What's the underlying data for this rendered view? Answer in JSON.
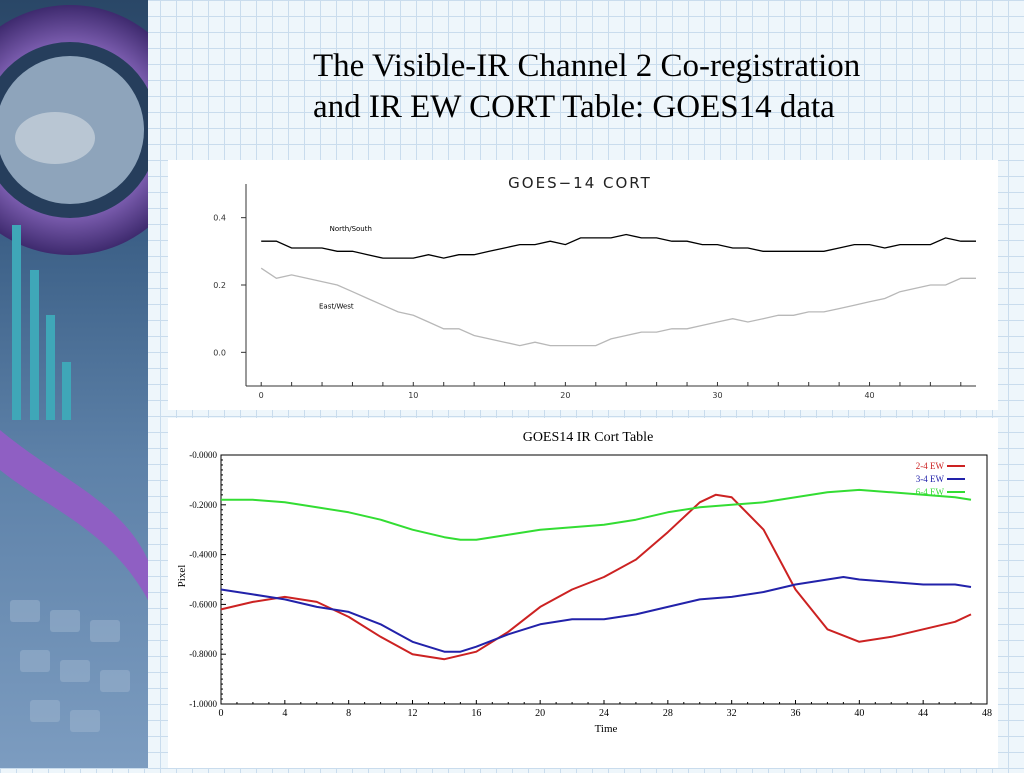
{
  "slide": {
    "title_line1": "The Visible-IR Channel 2 Co-registration",
    "title_line2": "and IR EW CORT Table: GOES14 data"
  },
  "chart_data": [
    {
      "type": "line",
      "title": "GOES−14  CORT",
      "xlabel": "",
      "ylabel": "",
      "xlim": [
        -1,
        47
      ],
      "ylim": [
        -0.1,
        0.5
      ],
      "x_ticks": [
        0,
        10,
        20,
        30,
        40
      ],
      "y_ticks": [
        0.0,
        0.2,
        0.4
      ],
      "y_tick_labels": [
        "0.0",
        "0.2",
        "0.4"
      ],
      "grid": false,
      "series": [
        {
          "name": "North/South",
          "color": "#000000",
          "x": [
            0,
            1,
            2,
            3,
            4,
            5,
            6,
            7,
            8,
            9,
            10,
            11,
            12,
            13,
            14,
            15,
            16,
            17,
            18,
            19,
            20,
            21,
            22,
            23,
            24,
            25,
            26,
            27,
            28,
            29,
            30,
            31,
            32,
            33,
            34,
            35,
            36,
            37,
            38,
            39,
            40,
            41,
            42,
            43,
            44,
            45,
            46,
            47
          ],
          "values": [
            0.33,
            0.33,
            0.31,
            0.31,
            0.31,
            0.3,
            0.3,
            0.29,
            0.28,
            0.28,
            0.28,
            0.29,
            0.28,
            0.29,
            0.29,
            0.3,
            0.31,
            0.32,
            0.32,
            0.33,
            0.32,
            0.34,
            0.34,
            0.34,
            0.35,
            0.34,
            0.34,
            0.33,
            0.33,
            0.32,
            0.32,
            0.31,
            0.31,
            0.3,
            0.3,
            0.3,
            0.3,
            0.3,
            0.31,
            0.32,
            0.32,
            0.31,
            0.32,
            0.32,
            0.32,
            0.34,
            0.33,
            0.33
          ]
        },
        {
          "name": "East/West",
          "color": "#b8b8b8",
          "x": [
            0,
            1,
            2,
            3,
            4,
            5,
            6,
            7,
            8,
            9,
            10,
            11,
            12,
            13,
            14,
            15,
            16,
            17,
            18,
            19,
            20,
            21,
            22,
            23,
            24,
            25,
            26,
            27,
            28,
            29,
            30,
            31,
            32,
            33,
            34,
            35,
            36,
            37,
            38,
            39,
            40,
            41,
            42,
            43,
            44,
            45,
            46,
            47
          ],
          "values": [
            0.25,
            0.22,
            0.23,
            0.22,
            0.21,
            0.2,
            0.18,
            0.16,
            0.14,
            0.12,
            0.11,
            0.09,
            0.07,
            0.07,
            0.05,
            0.04,
            0.03,
            0.02,
            0.03,
            0.02,
            0.02,
            0.02,
            0.02,
            0.04,
            0.05,
            0.06,
            0.06,
            0.07,
            0.07,
            0.08,
            0.09,
            0.1,
            0.09,
            0.1,
            0.11,
            0.11,
            0.12,
            0.12,
            0.13,
            0.14,
            0.15,
            0.16,
            0.18,
            0.19,
            0.2,
            0.2,
            0.22,
            0.22
          ]
        }
      ]
    },
    {
      "type": "line",
      "title": "GOES14 IR Cort Table",
      "xlabel": "Time",
      "ylabel": "Pixel",
      "xlim": [
        0,
        48
      ],
      "ylim": [
        -1.0,
        0.0
      ],
      "x_ticks": [
        0,
        4,
        8,
        12,
        16,
        20,
        24,
        28,
        32,
        36,
        40,
        44,
        48
      ],
      "y_ticks": [
        0.0,
        -0.2,
        -0.4,
        -0.6,
        -0.8,
        -1.0
      ],
      "y_tick_labels": [
        "-0.0000",
        "-0.2000",
        "-0.4000",
        "-0.6000",
        "-0.8000",
        "-1.0000"
      ],
      "grid": false,
      "legend": "top-right",
      "series": [
        {
          "name": "2-4 EW",
          "color": "#cc2222",
          "x": [
            0,
            2,
            4,
            6,
            8,
            10,
            12,
            14,
            16,
            18,
            20,
            22,
            24,
            26,
            28,
            30,
            31,
            32,
            34,
            36,
            38,
            40,
            42,
            44,
            46,
            47
          ],
          "values": [
            -0.62,
            -0.59,
            -0.57,
            -0.59,
            -0.65,
            -0.73,
            -0.8,
            -0.82,
            -0.79,
            -0.71,
            -0.61,
            -0.54,
            -0.49,
            -0.42,
            -0.31,
            -0.19,
            -0.16,
            -0.17,
            -0.3,
            -0.54,
            -0.7,
            -0.75,
            -0.73,
            -0.7,
            -0.67,
            -0.64
          ]
        },
        {
          "name": "3-4 EW",
          "color": "#2222aa",
          "x": [
            0,
            2,
            4,
            6,
            8,
            10,
            12,
            14,
            15,
            16,
            18,
            20,
            22,
            24,
            26,
            28,
            30,
            32,
            34,
            36,
            38,
            39,
            40,
            42,
            44,
            46,
            47
          ],
          "values": [
            -0.54,
            -0.56,
            -0.58,
            -0.61,
            -0.63,
            -0.68,
            -0.75,
            -0.79,
            -0.79,
            -0.77,
            -0.72,
            -0.68,
            -0.66,
            -0.66,
            -0.64,
            -0.61,
            -0.58,
            -0.57,
            -0.55,
            -0.52,
            -0.5,
            -0.49,
            -0.5,
            -0.51,
            -0.52,
            -0.52,
            -0.53
          ]
        },
        {
          "name": "6-4 EW",
          "color": "#33dd33",
          "x": [
            0,
            2,
            4,
            6,
            8,
            10,
            12,
            14,
            15,
            16,
            18,
            20,
            22,
            24,
            26,
            28,
            30,
            32,
            34,
            36,
            38,
            40,
            42,
            44,
            46,
            47
          ],
          "values": [
            -0.18,
            -0.18,
            -0.19,
            -0.21,
            -0.23,
            -0.26,
            -0.3,
            -0.33,
            -0.34,
            -0.34,
            -0.32,
            -0.3,
            -0.29,
            -0.28,
            -0.26,
            -0.23,
            -0.21,
            -0.2,
            -0.19,
            -0.17,
            -0.15,
            -0.14,
            -0.15,
            -0.16,
            -0.17,
            -0.18
          ]
        }
      ]
    }
  ]
}
